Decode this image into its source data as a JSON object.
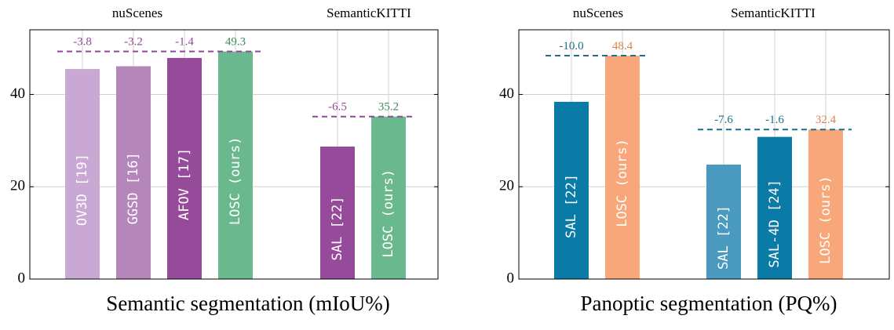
{
  "chart_data": [
    {
      "type": "bar",
      "title": "Semantic segmentation (mIoU%)",
      "ylim": [
        0,
        54
      ],
      "yticks": [
        0,
        20,
        40
      ],
      "groups": [
        {
          "label": "nuScenes",
          "reference_line": 49.3,
          "reference_color": "#8e4a95",
          "bars": [
            {
              "label": "OV3D [19]",
              "value": 45.5,
              "color": "#c9a8d4",
              "annotation": "-3.8",
              "annotation_color": "#8e4a95"
            },
            {
              "label": "GGSD [16]",
              "value": 46.1,
              "color": "#b586ba",
              "annotation": "-3.2",
              "annotation_color": "#8e4a95"
            },
            {
              "label": "AFOV [17]",
              "value": 47.9,
              "color": "#964a9a",
              "annotation": "-1.4",
              "annotation_color": "#8e4a95"
            },
            {
              "label": "LOSC (ours)",
              "value": 49.3,
              "color": "#6ab98e",
              "annotation": "49.3",
              "annotation_color": "#3f8a5e"
            }
          ]
        },
        {
          "label": "SemanticKITTI",
          "reference_line": 35.2,
          "reference_color": "#8e4a95",
          "bars": [
            {
              "label": "SAL [22]",
              "value": 28.7,
              "color": "#964a9a",
              "annotation": "-6.5",
              "annotation_color": "#8e4a95"
            },
            {
              "label": "LOSC (ours)",
              "value": 35.2,
              "color": "#6ab98e",
              "annotation": "35.2",
              "annotation_color": "#3f8a5e"
            }
          ]
        }
      ]
    },
    {
      "type": "bar",
      "title": "Panoptic segmentation (PQ%)",
      "ylim": [
        0,
        54
      ],
      "yticks": [
        0,
        20,
        40
      ],
      "groups": [
        {
          "label": "nuScenes",
          "reference_line": 48.4,
          "reference_color": "#1f6e8c",
          "bars": [
            {
              "label": "SAL [22]",
              "value": 38.4,
              "color": "#0a7aa6",
              "annotation": "-10.0",
              "annotation_color": "#1f6e8c"
            },
            {
              "label": "LOSC (ours)",
              "value": 48.4,
              "color": "#f7a779",
              "annotation": "48.4",
              "annotation_color": "#d9824f"
            }
          ]
        },
        {
          "label": "SemanticKITTI",
          "reference_line": 32.4,
          "reference_color": "#1f6e8c",
          "bars": [
            {
              "label": "SAL [22]",
              "value": 24.8,
              "color": "#4a9abf",
              "annotation": "-7.6",
              "annotation_color": "#1f6e8c"
            },
            {
              "label": "SAL-4D [24]",
              "value": 30.8,
              "color": "#0a7aa6",
              "annotation": "-1.6",
              "annotation_color": "#1f6e8c"
            },
            {
              "label": "LOSC (ours)",
              "value": 32.4,
              "color": "#f7a779",
              "annotation": "32.4",
              "annotation_color": "#d9824f"
            }
          ]
        }
      ]
    }
  ]
}
